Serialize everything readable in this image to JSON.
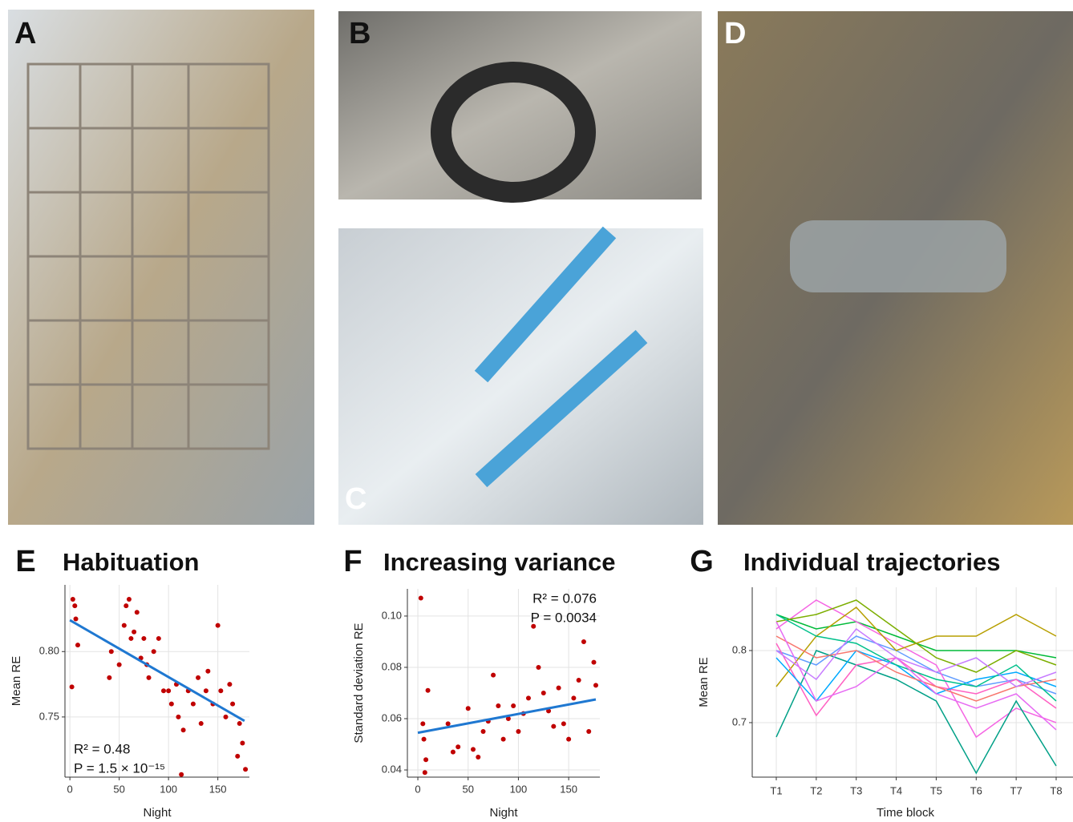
{
  "panels": [
    "A",
    "B",
    "C",
    "D"
  ],
  "chart_data": [
    {
      "type": "scatter",
      "label": "E",
      "title": "Habituation",
      "xlabel": "Night",
      "ylabel": "Mean RE",
      "x": [
        2,
        3,
        5,
        6,
        8,
        40,
        42,
        50,
        55,
        57,
        60,
        62,
        65,
        68,
        72,
        75,
        78,
        80,
        85,
        90,
        95,
        100,
        103,
        108,
        110,
        113,
        115,
        120,
        125,
        130,
        133,
        138,
        140,
        145,
        150,
        153,
        158,
        162,
        165,
        170,
        172,
        175,
        178
      ],
      "values": [
        0.773,
        0.84,
        0.835,
        0.825,
        0.805,
        0.78,
        0.8,
        0.79,
        0.82,
        0.835,
        0.84,
        0.81,
        0.815,
        0.83,
        0.795,
        0.81,
        0.79,
        0.78,
        0.8,
        0.81,
        0.77,
        0.77,
        0.76,
        0.775,
        0.75,
        0.706,
        0.74,
        0.77,
        0.76,
        0.78,
        0.745,
        0.77,
        0.785,
        0.76,
        0.82,
        0.77,
        0.75,
        0.775,
        0.76,
        0.72,
        0.745,
        0.73,
        0.71
      ],
      "color": "#c00000",
      "fit": {
        "x": [
          0,
          177
        ],
        "values": [
          0.824,
          0.747
        ],
        "color": "#1f78d1"
      },
      "annotations": [
        "R² = 0.48",
        "P = 1.5 × 10⁻¹⁵"
      ],
      "xlim": [
        -5,
        182
      ],
      "ylim": [
        0.704,
        0.851
      ],
      "xticks": [
        0,
        50,
        100,
        150
      ],
      "yticks": [
        0.75,
        {
          "value": 0.8,
          "label": "0.80"
        }
      ],
      "grid": true
    },
    {
      "type": "scatter",
      "label": "F",
      "title": "Increasing variance",
      "xlabel": "Night",
      "ylabel": "Standard deviation RE",
      "x": [
        3,
        5,
        6,
        7,
        8,
        10,
        30,
        35,
        40,
        50,
        55,
        60,
        65,
        70,
        75,
        80,
        85,
        90,
        95,
        100,
        105,
        110,
        115,
        120,
        125,
        130,
        135,
        140,
        145,
        150,
        155,
        160,
        165,
        170,
        175,
        177
      ],
      "values": [
        0.107,
        0.058,
        0.052,
        0.039,
        0.044,
        0.071,
        0.058,
        0.047,
        0.049,
        0.064,
        0.048,
        0.045,
        0.055,
        0.059,
        0.077,
        0.065,
        0.052,
        0.06,
        0.065,
        0.055,
        0.062,
        0.068,
        0.096,
        0.08,
        0.07,
        0.063,
        0.057,
        0.072,
        0.058,
        0.052,
        0.068,
        0.075,
        0.09,
        0.055,
        0.082,
        0.073
      ],
      "color": "#c00000",
      "fit": {
        "x": [
          0,
          177
        ],
        "values": [
          0.0545,
          0.0675
        ],
        "color": "#1f78d1"
      },
      "annotations": [
        "R² = 0.076",
        "P = 0.0034"
      ],
      "xlim": [
        -10.4,
        181
      ],
      "ylim": [
        0.0372,
        0.1106
      ],
      "xticks": [
        0,
        50,
        100,
        150
      ],
      "yticks": [
        0.04,
        0.06,
        0.08,
        {
          "value": 0.1,
          "label": "0.10"
        }
      ],
      "grid": true
    },
    {
      "type": "line",
      "label": "G",
      "title": "Individual trajectories",
      "xlabel": "Time block",
      "ylabel": "Mean RE",
      "categories": [
        "T1",
        "T2",
        "T3",
        "T4",
        "T5",
        "T6",
        "T7",
        "T8"
      ],
      "series": [
        {
          "color": "#00BA38",
          "values": [
            0.85,
            0.83,
            0.84,
            0.82,
            0.8,
            0.8,
            0.8,
            0.79
          ]
        },
        {
          "color": "#619CFF",
          "values": [
            0.8,
            0.78,
            0.82,
            0.8,
            0.77,
            0.75,
            0.76,
            0.74
          ]
        },
        {
          "color": "#F564E3",
          "values": [
            0.83,
            0.87,
            0.84,
            0.81,
            0.78,
            0.68,
            0.72,
            0.7
          ]
        },
        {
          "color": "#00A087",
          "values": [
            0.68,
            0.8,
            0.78,
            0.76,
            0.73,
            0.63,
            0.73,
            0.64
          ]
        },
        {
          "color": "#B79F00",
          "values": [
            0.75,
            0.82,
            0.86,
            0.8,
            0.82,
            0.82,
            0.85,
            0.82
          ]
        },
        {
          "color": "#FF61C3",
          "values": [
            0.81,
            0.71,
            0.78,
            0.79,
            0.75,
            0.74,
            0.76,
            0.72
          ]
        },
        {
          "color": "#00A9FF",
          "values": [
            0.79,
            0.73,
            0.8,
            0.78,
            0.74,
            0.76,
            0.77,
            0.75
          ]
        },
        {
          "color": "#7CAE00",
          "values": [
            0.84,
            0.85,
            0.87,
            0.83,
            0.79,
            0.77,
            0.8,
            0.78
          ]
        },
        {
          "color": "#F8766D",
          "values": [
            0.82,
            0.79,
            0.8,
            0.77,
            0.75,
            0.73,
            0.75,
            0.76
          ]
        },
        {
          "color": "#00C08B",
          "values": [
            0.85,
            0.82,
            0.81,
            0.78,
            0.76,
            0.75,
            0.78,
            0.73
          ]
        },
        {
          "color": "#C77CFF",
          "values": [
            0.8,
            0.76,
            0.83,
            0.79,
            0.77,
            0.79,
            0.75,
            0.77
          ]
        },
        {
          "color": "#E76BF3",
          "values": [
            0.84,
            0.73,
            0.75,
            0.79,
            0.74,
            0.72,
            0.74,
            0.69
          ]
        }
      ],
      "ylim": [
        0.6244,
        0.8878
      ],
      "yticks": [
        0.7,
        0.8
      ],
      "grid": true
    }
  ]
}
